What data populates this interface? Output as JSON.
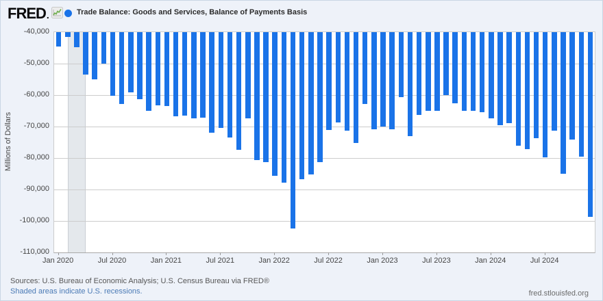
{
  "header": {
    "logo_text": "FRED",
    "logo_mark": ".",
    "series_title": "Trade Balance: Goods and Services, Balance of Payments Basis"
  },
  "chart_data": {
    "type": "bar",
    "title": "Trade Balance: Goods and Services, Balance of Payments Basis",
    "ylabel": "Millions of Dollars",
    "ylim": [
      -110000,
      -40000
    ],
    "grid": true,
    "bar_color": "#1a73e8",
    "recession_band_color": "#e4e8ec",
    "ytick_labels": [
      "-40,000",
      "-50,000",
      "-60,000",
      "-70,000",
      "-80,000",
      "-90,000",
      "-100,000",
      "-110,000"
    ],
    "x": [
      "Jan 2020",
      "Feb 2020",
      "Mar 2020",
      "Apr 2020",
      "May 2020",
      "Jun 2020",
      "Jul 2020",
      "Aug 2020",
      "Sep 2020",
      "Oct 2020",
      "Nov 2020",
      "Dec 2020",
      "Jan 2021",
      "Feb 2021",
      "Mar 2021",
      "Apr 2021",
      "May 2021",
      "Jun 2021",
      "Jul 2021",
      "Aug 2021",
      "Sep 2021",
      "Oct 2021",
      "Nov 2021",
      "Dec 2021",
      "Jan 2022",
      "Feb 2022",
      "Mar 2022",
      "Apr 2022",
      "May 2022",
      "Jun 2022",
      "Jul 2022",
      "Aug 2022",
      "Sep 2022",
      "Oct 2022",
      "Nov 2022",
      "Dec 2022",
      "Jan 2023",
      "Feb 2023",
      "Mar 2023",
      "Apr 2023",
      "May 2023",
      "Jun 2023",
      "Jul 2023",
      "Aug 2023",
      "Sep 2023",
      "Oct 2023",
      "Nov 2023",
      "Dec 2023",
      "Jan 2024",
      "Feb 2024",
      "Mar 2024",
      "Apr 2024",
      "May 2024",
      "Jun 2024",
      "Jul 2024",
      "Aug 2024",
      "Sep 2024",
      "Oct 2024",
      "Nov 2024",
      "Dec 2024"
    ],
    "values": [
      -44600,
      -41500,
      -44800,
      -53500,
      -55000,
      -50000,
      -60200,
      -62800,
      -59100,
      -61400,
      -64900,
      -63200,
      -63500,
      -66700,
      -66500,
      -67400,
      -67100,
      -72000,
      -70500,
      -73400,
      -77400,
      -67400,
      -80700,
      -81400,
      -85600,
      -87900,
      -102300,
      -86700,
      -85200,
      -81300,
      -71100,
      -68800,
      -71300,
      -75300,
      -62800,
      -70800,
      -70000,
      -70800,
      -60600,
      -73100,
      -66200,
      -65100,
      -65000,
      -60100,
      -62500,
      -64900,
      -65100,
      -65400,
      -67300,
      -69500,
      -68900,
      -76000,
      -77100,
      -73800,
      -79700,
      -71400,
      -84900,
      -74200,
      -79500,
      -98700
    ],
    "xticks": [
      {
        "index": 0,
        "label": "Jan 2020"
      },
      {
        "index": 6,
        "label": "Jul 2020"
      },
      {
        "index": 12,
        "label": "Jan 2021"
      },
      {
        "index": 18,
        "label": "Jul 2021"
      },
      {
        "index": 24,
        "label": "Jan 2022"
      },
      {
        "index": 30,
        "label": "Jul 2022"
      },
      {
        "index": 36,
        "label": "Jan 2023"
      },
      {
        "index": 42,
        "label": "Jul 2023"
      },
      {
        "index": 48,
        "label": "Jan 2024"
      },
      {
        "index": 54,
        "label": "Jul 2024"
      }
    ],
    "recession_bands": [
      {
        "from_index": 1,
        "to_index": 3,
        "label": "U.S. recession Feb 2020 - Apr 2020"
      }
    ]
  },
  "footer": {
    "sources": "Sources: U.S. Bureau of Economic Analysis; U.S. Census Bureau via FRED®",
    "recession_note": "Shaded areas indicate U.S. recessions.",
    "site": "fred.stlouisfed.org"
  }
}
